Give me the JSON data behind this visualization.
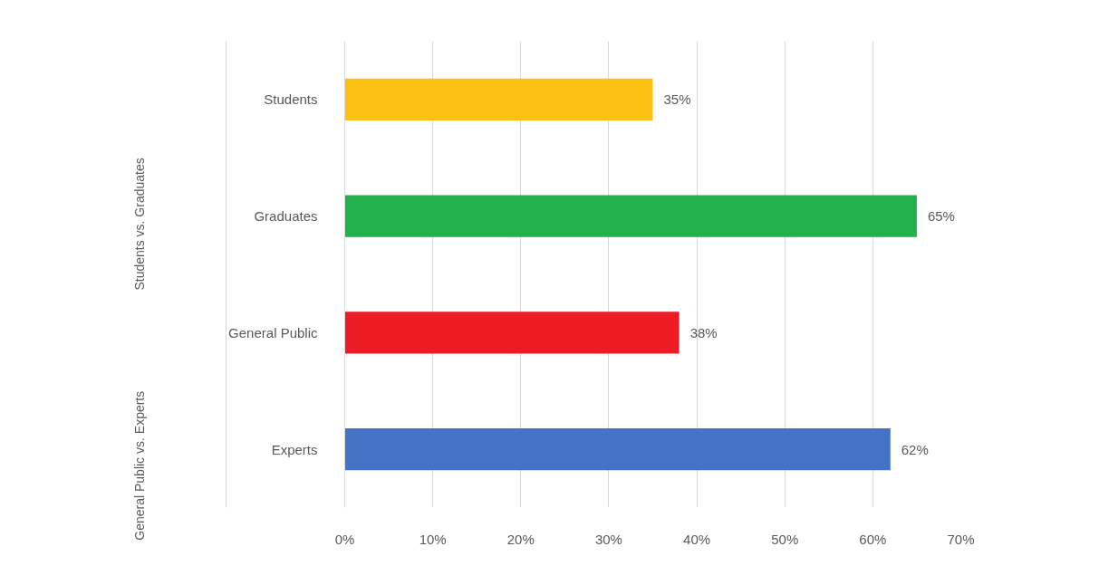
{
  "chart_data": {
    "type": "bar",
    "orientation": "horizontal",
    "categories": [
      "Students",
      "Graduates",
      "General Public",
      "Experts"
    ],
    "values": [
      35,
      65,
      38,
      62
    ],
    "colors": [
      "#fcc010",
      "#22b14c",
      "#ed1c24",
      "#4472c4"
    ],
    "value_labels": [
      "35%",
      "65%",
      "38%",
      "62%"
    ],
    "xlim": [
      0,
      70
    ],
    "xticks": [
      {
        "value": 0,
        "label": "0%"
      },
      {
        "value": 10,
        "label": "10%"
      },
      {
        "value": 20,
        "label": "20%"
      },
      {
        "value": 30,
        "label": "30%"
      },
      {
        "value": 40,
        "label": "40%"
      },
      {
        "value": 50,
        "label": "50%"
      },
      {
        "value": 60,
        "label": "60%"
      },
      {
        "value": 70,
        "label": "70%"
      }
    ],
    "grid": "x",
    "annotations": [
      "Students vs. Graduates",
      "General Public vs. Experts"
    ]
  }
}
